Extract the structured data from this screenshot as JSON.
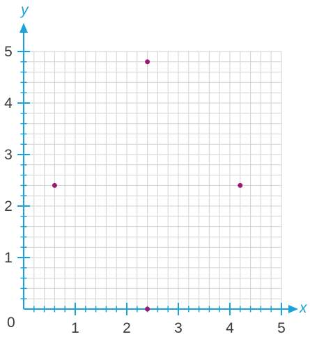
{
  "chart_data": {
    "type": "scatter",
    "x_axis": {
      "label": "x",
      "range": [
        0,
        5
      ],
      "ticks": [
        "1",
        "2",
        "3",
        "4",
        "5"
      ],
      "origin_label": "0"
    },
    "y_axis": {
      "label": "y",
      "range": [
        0,
        5
      ],
      "ticks": [
        "1",
        "2",
        "3",
        "4",
        "5"
      ]
    },
    "grid": true,
    "grid_minor_step": 0.2,
    "points": [
      {
        "x": 2.4,
        "y": 4.8
      },
      {
        "x": 0.6,
        "y": 2.4
      },
      {
        "x": 4.2,
        "y": 2.4
      },
      {
        "x": 2.4,
        "y": 0
      }
    ],
    "colors": {
      "axis": "#1aa3d9",
      "grid": "#d2d2d2",
      "point": "#9b1a78"
    }
  }
}
